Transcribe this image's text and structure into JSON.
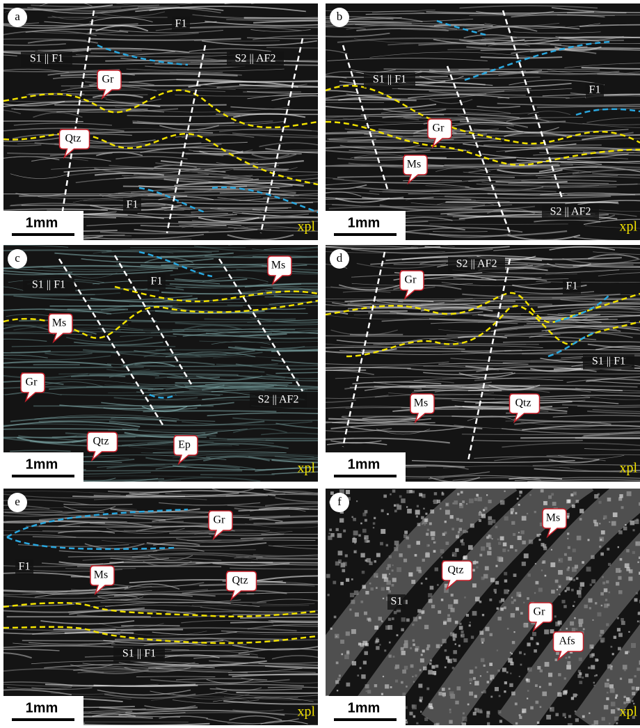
{
  "panels": [
    {
      "letter": "a",
      "structures": [
        "S1 || F1",
        "F1",
        "S2 || AF2",
        "F1"
      ],
      "minerals": [
        "Gr",
        "Qtz"
      ],
      "scale_bar": "1mm",
      "mode": "xpl"
    },
    {
      "letter": "b",
      "structures": [
        "S1 || F1",
        "F1",
        "S2 || AF2"
      ],
      "minerals": [
        "Gr",
        "Ms"
      ],
      "scale_bar": "1mm",
      "mode": "xpl"
    },
    {
      "letter": "c",
      "structures": [
        "S1 || F1",
        "F1",
        "S2 || AF2"
      ],
      "minerals": [
        "Ms",
        "Ms",
        "Gr",
        "Qtz",
        "Ep"
      ],
      "scale_bar": "1mm",
      "mode": "xpl"
    },
    {
      "letter": "d",
      "structures": [
        "S2 || AF2",
        "F1",
        "S1 || F1"
      ],
      "minerals": [
        "Gr",
        "Ms",
        "Qtz"
      ],
      "scale_bar": "1mm",
      "mode": "xpl"
    },
    {
      "letter": "e",
      "structures": [
        "F1",
        "S1 || F1"
      ],
      "minerals": [
        "Gr",
        "Ms",
        "Qtz"
      ],
      "scale_bar": "1mm",
      "mode": "xpl"
    },
    {
      "letter": "f",
      "structures": [
        "S1"
      ],
      "minerals": [
        "Qtz",
        "Ms",
        "Gr",
        "Afs"
      ],
      "scale_bar": "1mm",
      "mode": "xpl"
    }
  ]
}
